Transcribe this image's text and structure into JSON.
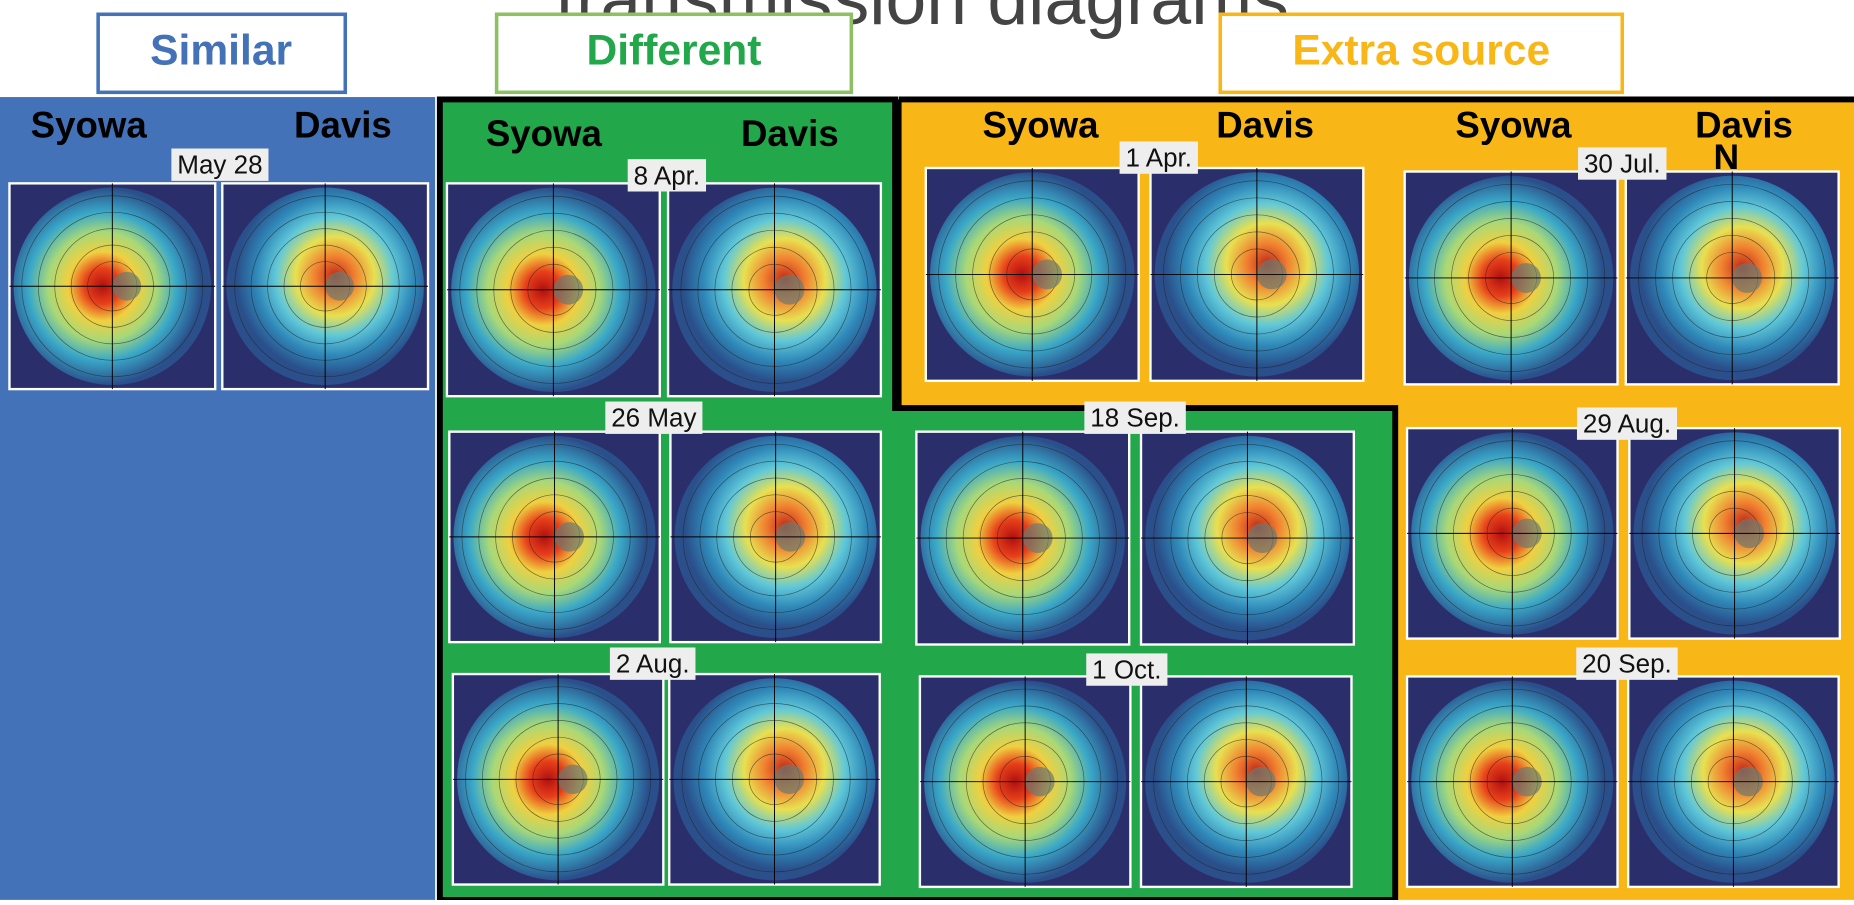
{
  "title": "transmission diagrams",
  "categories": [
    "Similar",
    "Different",
    "Extra source"
  ],
  "station_headers": [
    [
      "Syowa",
      "Davis"
    ],
    [
      "Syowa",
      "Davis"
    ],
    [
      "Syowa",
      "Davis"
    ],
    [
      "Syowa",
      "Davis"
    ]
  ],
  "events": [
    "May 28",
    "8 Apr.",
    "26 May",
    "2 Aug.",
    "18 Sep.",
    "1 Oct.",
    "1 Apr.",
    "30 Jul.",
    "29 Aug.",
    "20 Sep."
  ],
  "north_label": "N"
}
